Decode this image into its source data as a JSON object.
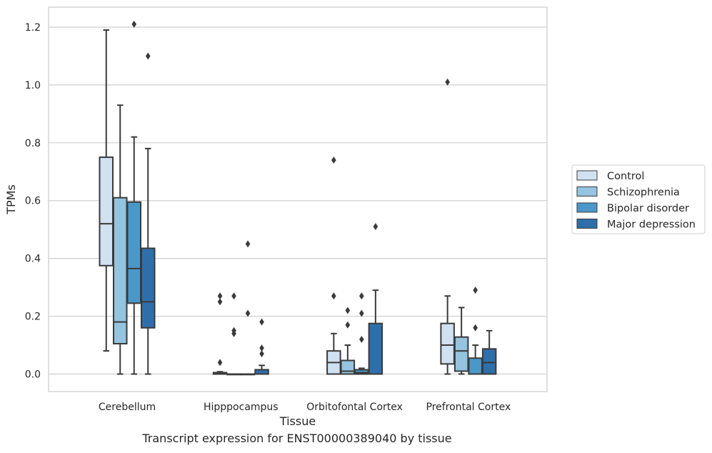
{
  "caption": "Transcript expression for ENST00000389040 by tissue",
  "chart_data": {
    "type": "boxplot",
    "xlabel": "Tissue",
    "ylabel": "TPMs",
    "ylim": [
      -0.06,
      1.27
    ],
    "yticks": [
      0.0,
      0.2,
      0.4,
      0.6,
      0.8,
      1.0,
      1.2
    ],
    "ytick_labels": [
      "0.0",
      "0.2",
      "0.4",
      "0.6",
      "0.8",
      "1.0",
      "1.2"
    ],
    "grid": "horizontal",
    "legend_position": "right",
    "categories": [
      "Cerebellum",
      "Hipppocampus",
      "Orbitofontal Cortex",
      "Prefrontal Cortex"
    ],
    "series": [
      {
        "name": "Control",
        "color": "#d0e1f2",
        "boxes": [
          {
            "whislo": 0.08,
            "q1": 0.375,
            "med": 0.52,
            "q3": 0.75,
            "whishi": 1.19,
            "fliers": []
          },
          {
            "whislo": 0.0,
            "q1": 0.0,
            "med": 0.0,
            "q3": 0.005,
            "whishi": 0.008,
            "fliers": [
              0.04,
              0.25,
              0.27
            ]
          },
          {
            "whislo": 0.0,
            "q1": 0.0,
            "med": 0.04,
            "q3": 0.08,
            "whishi": 0.14,
            "fliers": [
              0.27,
              0.74
            ]
          },
          {
            "whislo": 0.0,
            "q1": 0.035,
            "med": 0.1,
            "q3": 0.175,
            "whishi": 0.27,
            "fliers": [
              1.01
            ]
          }
        ]
      },
      {
        "name": "Schizophrenia",
        "color": "#94c4df",
        "boxes": [
          {
            "whislo": 0.0,
            "q1": 0.105,
            "med": 0.18,
            "q3": 0.61,
            "whishi": 0.93,
            "fliers": []
          },
          {
            "whislo": 0.0,
            "q1": 0.0,
            "med": 0.0,
            "q3": 0.0,
            "whishi": 0.0,
            "fliers": [
              0.14,
              0.15,
              0.27
            ]
          },
          {
            "whislo": 0.0,
            "q1": 0.0,
            "med": 0.01,
            "q3": 0.047,
            "whishi": 0.1,
            "fliers": [
              0.17,
              0.22
            ]
          },
          {
            "whislo": 0.0,
            "q1": 0.01,
            "med": 0.08,
            "q3": 0.128,
            "whishi": 0.23,
            "fliers": []
          }
        ]
      },
      {
        "name": "Bipolar disorder",
        "color": "#4a98c9",
        "boxes": [
          {
            "whislo": 0.0,
            "q1": 0.245,
            "med": 0.365,
            "q3": 0.595,
            "whishi": 0.82,
            "fliers": [
              1.21
            ]
          },
          {
            "whislo": 0.0,
            "q1": 0.0,
            "med": 0.0,
            "q3": 0.0,
            "whishi": 0.0,
            "fliers": [
              0.21,
              0.45
            ]
          },
          {
            "whislo": 0.0,
            "q1": 0.0,
            "med": 0.005,
            "q3": 0.015,
            "whishi": 0.02,
            "fliers": [
              0.12,
              0.21,
              0.27
            ]
          },
          {
            "whislo": 0.0,
            "q1": 0.0,
            "med": 0.0,
            "q3": 0.055,
            "whishi": 0.1,
            "fliers": [
              0.16,
              0.29
            ]
          }
        ]
      },
      {
        "name": "Major depression",
        "color": "#2e6fab",
        "boxes": [
          {
            "whislo": 0.0,
            "q1": 0.16,
            "med": 0.25,
            "q3": 0.435,
            "whishi": 0.78,
            "fliers": [
              1.1
            ]
          },
          {
            "whislo": 0.0,
            "q1": 0.0,
            "med": 0.0,
            "q3": 0.015,
            "whishi": 0.03,
            "fliers": [
              0.07,
              0.09,
              0.18
            ]
          },
          {
            "whislo": 0.0,
            "q1": 0.0,
            "med": 0.0,
            "q3": 0.175,
            "whishi": 0.29,
            "fliers": [
              0.51
            ]
          },
          {
            "whislo": 0.0,
            "q1": 0.0,
            "med": 0.04,
            "q3": 0.087,
            "whishi": 0.15,
            "fliers": []
          }
        ]
      }
    ]
  }
}
